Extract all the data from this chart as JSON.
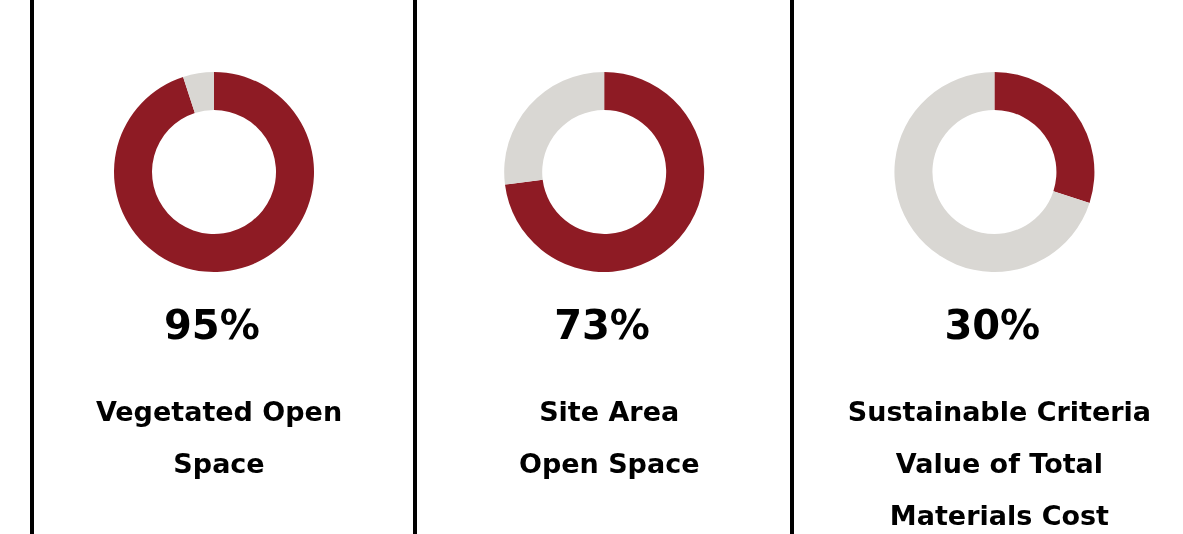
{
  "chart_data": [
    {
      "type": "donut",
      "title": "Vegetated Open\nSpace",
      "categories": [
        null,
        null
      ],
      "values": [
        95,
        5
      ],
      "colors": [
        "#8e1b24",
        "#d9d7d3"
      ],
      "annotations": [
        "95%"
      ]
    },
    {
      "type": "donut",
      "title": "Site Area\nOpen Space",
      "categories": [
        null,
        null
      ],
      "values": [
        73,
        27
      ],
      "colors": [
        "#8e1b24",
        "#d9d7d3"
      ],
      "annotations": [
        "73%"
      ]
    },
    {
      "type": "donut",
      "title": "Sustainable Criteria\nValue of Total\nMaterials Cost",
      "categories": [
        null,
        null
      ],
      "values": [
        30,
        70
      ],
      "colors": [
        "#8e1b24",
        "#d9d7d3"
      ],
      "annotations": [
        "30%"
      ]
    }
  ]
}
